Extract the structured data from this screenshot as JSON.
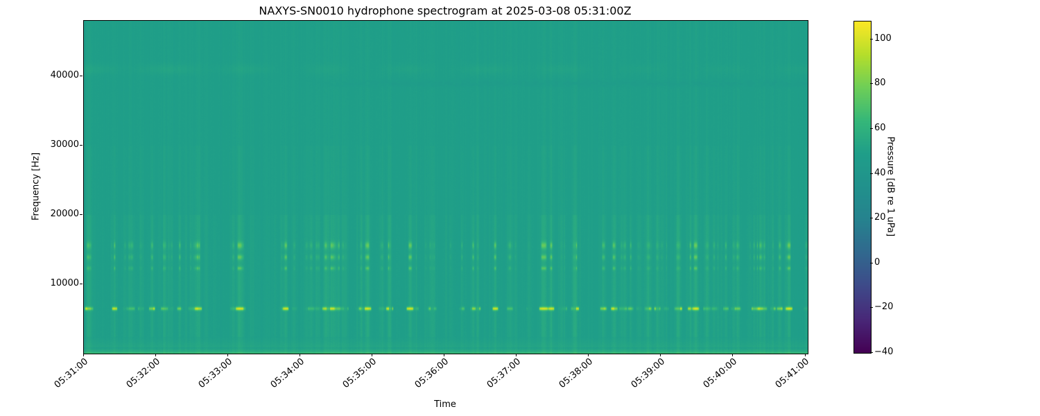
{
  "chart_data": {
    "type": "heatmap",
    "title": "NAXYS-SN0010 hydrophone spectrogram at 2025-03-08 05:31:00Z",
    "xlabel": "Time",
    "ylabel": "Frequency [Hz]",
    "x_tick_labels": [
      "05:31:00",
      "05:32:00",
      "05:33:00",
      "05:34:00",
      "05:35:00",
      "05:36:00",
      "05:37:00",
      "05:38:00",
      "05:39:00",
      "05:40:00",
      "05:41:00"
    ],
    "x_tick_interval_seconds": 60,
    "time_span_seconds": 602,
    "y_tick_values": [
      10000,
      20000,
      30000,
      40000
    ],
    "y_tick_labels": [
      "10000",
      "20000",
      "30000",
      "40000"
    ],
    "freq_range_hz": [
      0,
      48000
    ],
    "grid": false,
    "legend": "none",
    "colorbar": {
      "label": "Pressure [dB re 1 uPa]",
      "tick_values": [
        100,
        80,
        60,
        40,
        20,
        0,
        -20,
        -40
      ],
      "tick_labels": [
        "100",
        "80",
        "60",
        "40",
        "20",
        "0",
        "−20",
        "−40"
      ],
      "vmin": -40,
      "vmax": 108,
      "position": "right"
    },
    "colormap": {
      "name": "viridis",
      "stops": [
        [
          0.0,
          "#440154"
        ],
        [
          0.1,
          "#482878"
        ],
        [
          0.2,
          "#3e4a89"
        ],
        [
          0.3,
          "#31688e"
        ],
        [
          0.4,
          "#26828e"
        ],
        [
          0.5,
          "#21918c"
        ],
        [
          0.6,
          "#1f9e89"
        ],
        [
          0.7,
          "#35b779"
        ],
        [
          0.8,
          "#6ece58"
        ],
        [
          0.9,
          "#b5de2b"
        ],
        [
          1.0,
          "#fde725"
        ]
      ]
    },
    "background_level_db": 49,
    "features": {
      "bands": [
        {
          "name": "surface-low-frequency-strip",
          "f_lo_hz": 0,
          "f_hi_hz": 900,
          "kind": "static",
          "gain_db": 10
        },
        {
          "name": "low-strip",
          "f_lo_hz": 900,
          "f_hi_hz": 2400,
          "kind": "static",
          "gain_db": 3.5
        },
        {
          "name": "tonal-6400",
          "f_center_hz": 6480,
          "f_sigma_hz": 170,
          "kind": "burst",
          "threshold": 0.42,
          "rate_db": 80,
          "max_db": 46
        },
        {
          "name": "band-12300",
          "f_center_hz": 12300,
          "f_sigma_hz": 190,
          "kind": "burst",
          "threshold": 0.34,
          "rate_db": 26,
          "max_db": 18
        },
        {
          "name": "band-13900",
          "f_center_hz": 13900,
          "f_sigma_hz": 260,
          "kind": "burst",
          "threshold": 0.33,
          "rate_db": 30,
          "max_db": 20
        },
        {
          "name": "band-15600",
          "f_center_hz": 15600,
          "f_sigma_hz": 350,
          "kind": "burst",
          "threshold": 0.3,
          "rate_db": 30,
          "max_db": 21
        },
        {
          "name": "broadband-streaks-low",
          "f_lo_hz": 0,
          "f_hi_hz": 2400,
          "kind": "streak",
          "gain_db": 3
        },
        {
          "name": "broadband-streaks-mid",
          "f_lo_hz": 2400,
          "f_hi_hz": 20000,
          "kind": "streak",
          "gain_db": 5.5
        },
        {
          "name": "broadband-streaks-high",
          "f_lo_hz": 20000,
          "f_hi_hz": 30000,
          "kind": "streak",
          "gain_db": 2.5
        },
        {
          "name": "broadband-streaks-vhf",
          "f_lo_hz": 30000,
          "f_hi_hz": 48000,
          "kind": "streak",
          "gain_db": 1.2
        },
        {
          "name": "wavy-band-41000",
          "f_center_hz": 41000,
          "f_sigma_hz": 520,
          "kind": "wavy",
          "gain_db": 2.8
        },
        {
          "name": "dim-speckle-band-39000",
          "f_center_hz": 38950,
          "f_sigma_hz": 330,
          "kind": "dim-speckle",
          "gain_db": -1.8
        }
      ],
      "texture": {
        "seed": 20250308,
        "event_count": 260,
        "base_activity": 0.32,
        "column_noise_db": 1.6,
        "pixel_noise_db": 1.1,
        "clusters": [
          {
            "x": 0.03,
            "w": 0.04,
            "a": 0.9
          },
          {
            "x": 0.105,
            "w": 0.02,
            "a": 0.75
          },
          {
            "x": 0.155,
            "w": 0.012,
            "a": 0.6
          },
          {
            "x": 0.2,
            "w": 0.015,
            "a": 0.8
          },
          {
            "x": 0.275,
            "w": 0.012,
            "a": 0.55
          },
          {
            "x": 0.33,
            "w": 0.014,
            "a": 0.85
          },
          {
            "x": 0.385,
            "w": 0.028,
            "a": 0.95
          },
          {
            "x": 0.45,
            "w": 0.03,
            "a": 0.8
          },
          {
            "x": 0.515,
            "w": 0.03,
            "a": 1.0
          },
          {
            "x": 0.565,
            "w": 0.018,
            "a": 0.75
          },
          {
            "x": 0.62,
            "w": 0.03,
            "a": 0.9
          },
          {
            "x": 0.675,
            "w": 0.02,
            "a": 0.7
          },
          {
            "x": 0.72,
            "w": 0.028,
            "a": 0.85
          },
          {
            "x": 0.77,
            "w": 0.022,
            "a": 0.8
          },
          {
            "x": 0.82,
            "w": 0.015,
            "a": 0.65
          },
          {
            "x": 0.865,
            "w": 0.018,
            "a": 0.9
          },
          {
            "x": 0.925,
            "w": 0.018,
            "a": 0.7
          },
          {
            "x": 0.985,
            "w": 0.02,
            "a": 0.95
          }
        ]
      }
    }
  }
}
